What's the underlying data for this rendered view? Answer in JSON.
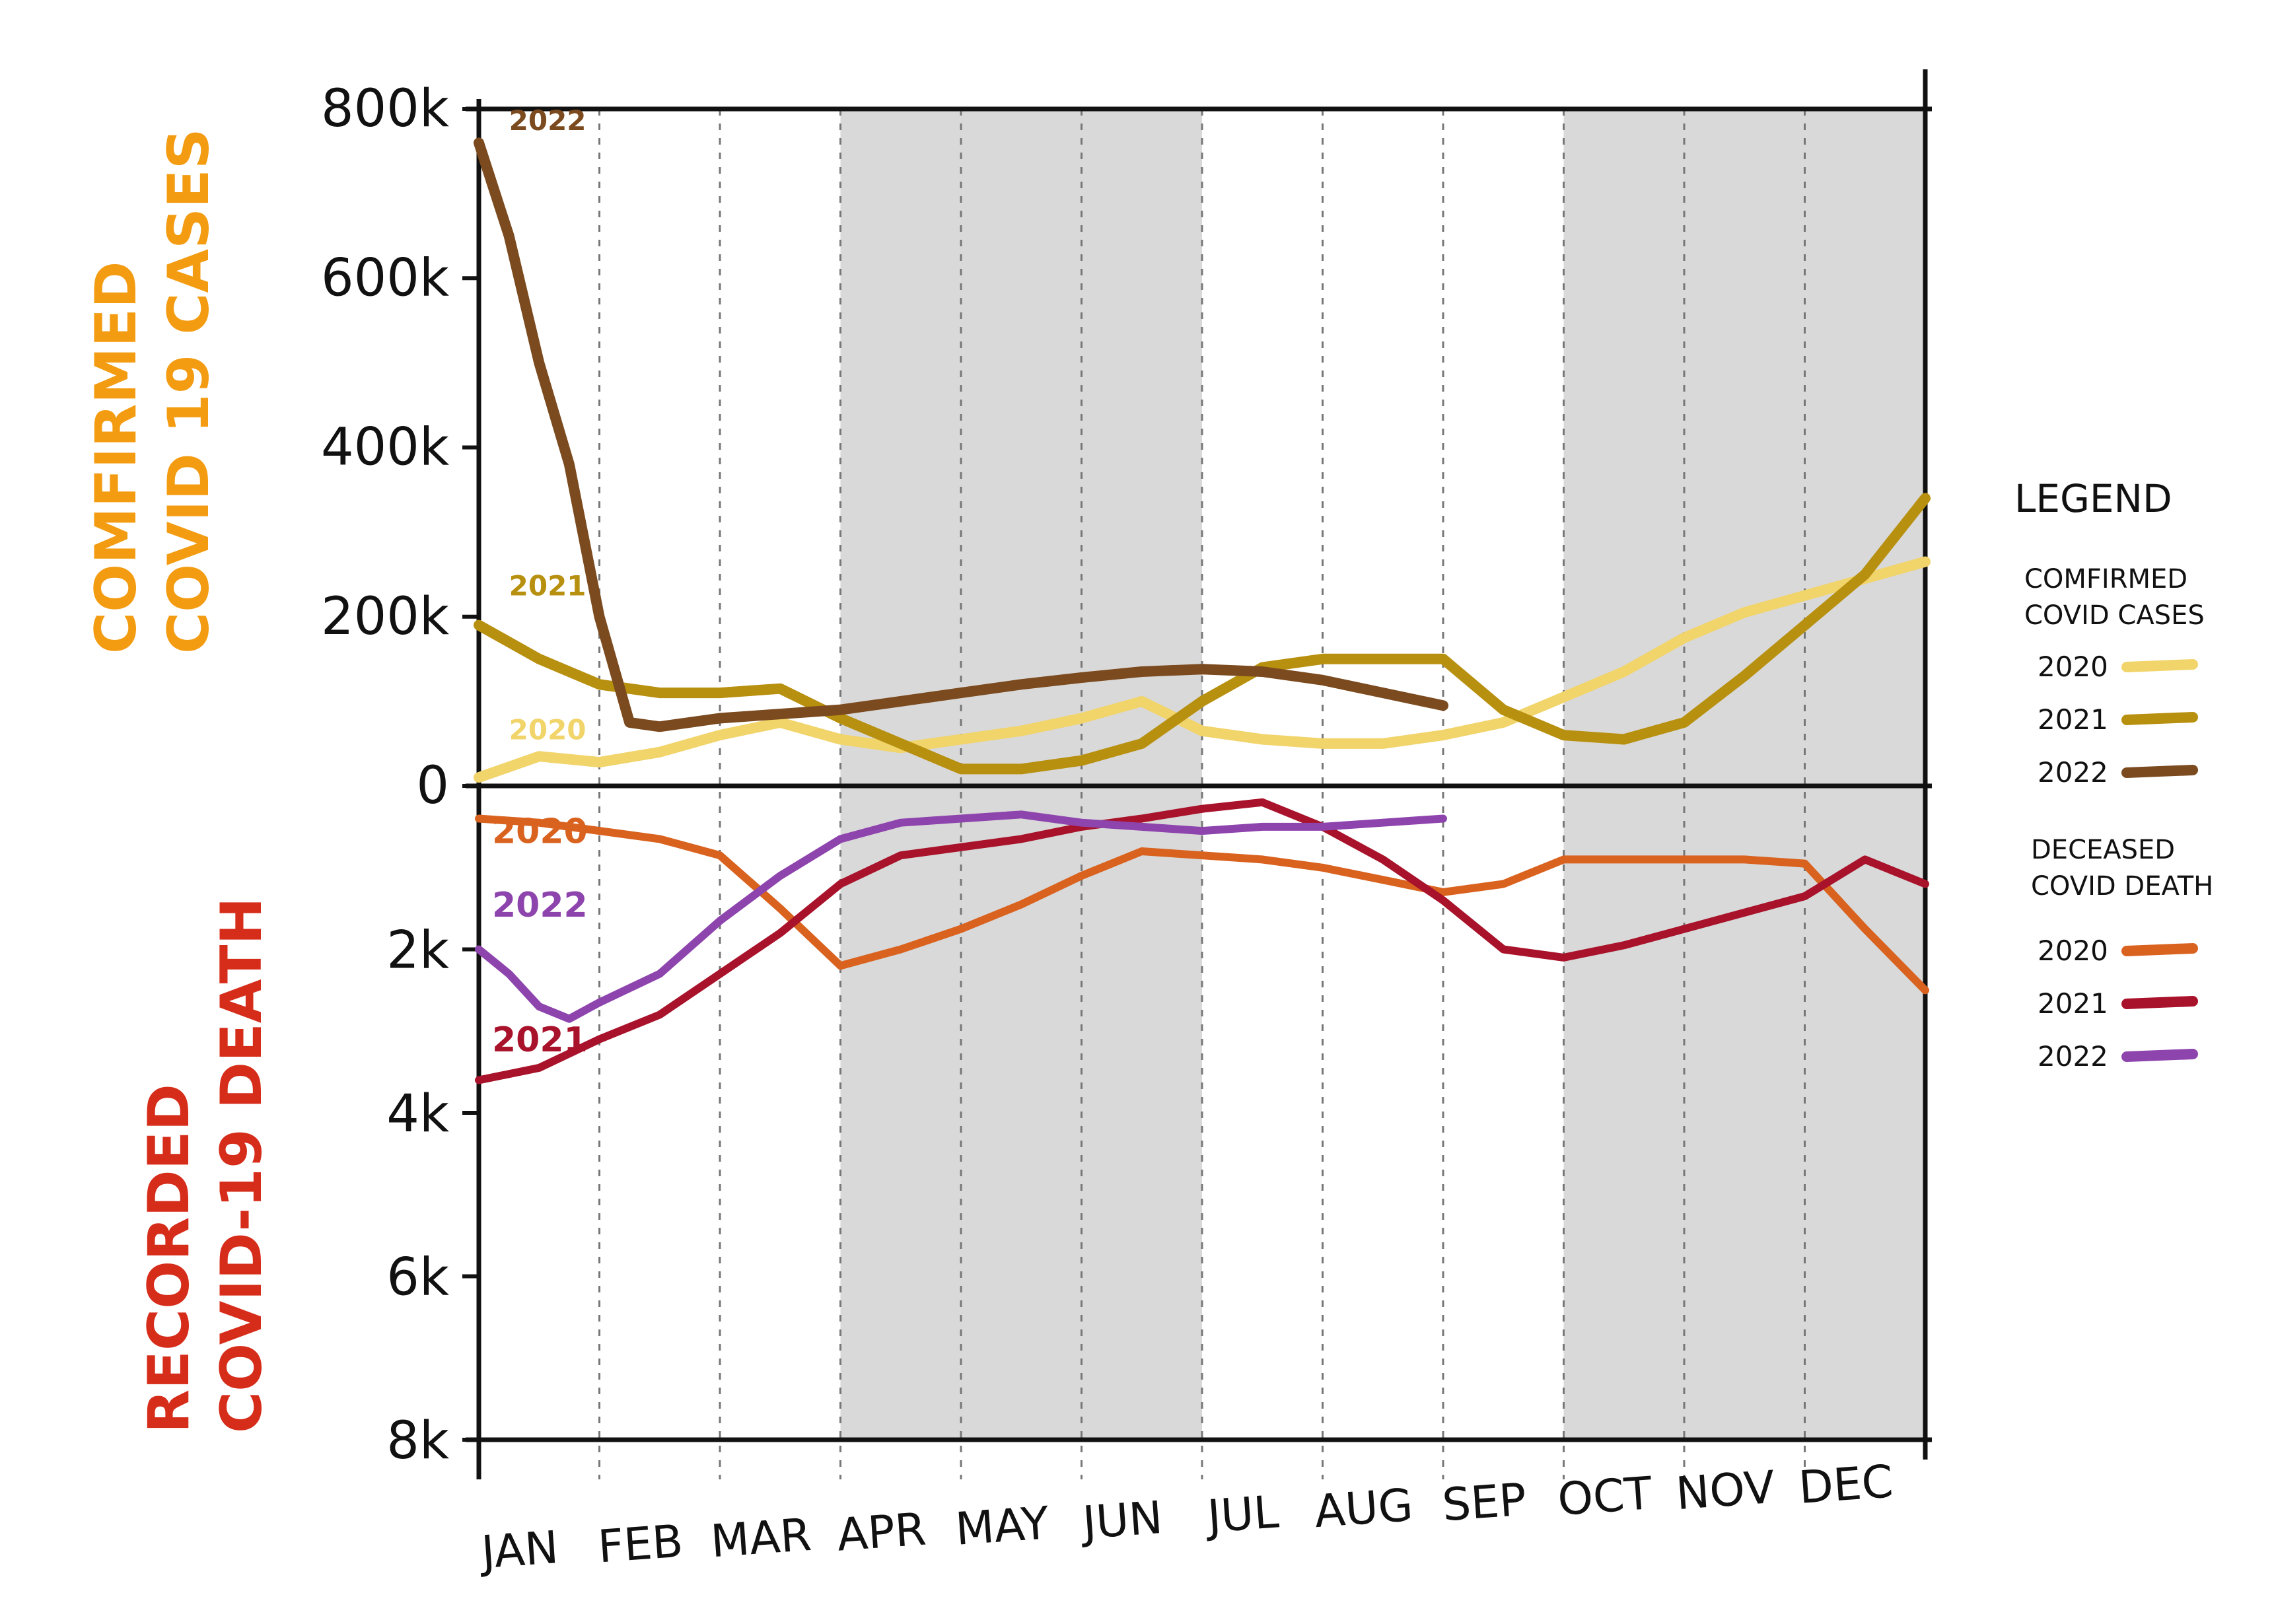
{
  "chart_data": {
    "type": "line",
    "x": [
      "JAN",
      "FEB",
      "MAR",
      "APR",
      "MAY",
      "JUN",
      "JUL",
      "AUG",
      "SEP",
      "OCT",
      "NOV",
      "DEC"
    ],
    "shaded_periods": [
      [
        "APR",
        "JUN"
      ],
      [
        "OCT",
        "DEC"
      ]
    ],
    "cases": {
      "ylabel_lines": [
        "COMFIRMED",
        "COVID 19 CASES"
      ],
      "ylim": [
        0,
        800000
      ],
      "yticks": [
        "800k",
        "600k",
        "400k",
        "200k",
        "0"
      ],
      "ytick_values": [
        800000,
        600000,
        400000,
        200000,
        0
      ],
      "series": [
        {
          "name": "2020",
          "color": "#f1d46a",
          "x": [
            0.0,
            0.5,
            1.0,
            1.5,
            2.0,
            2.5,
            3.0,
            3.5,
            4.0,
            4.5,
            5.0,
            5.5,
            6.0,
            6.5,
            7.0,
            7.5,
            8.0,
            8.5,
            9.0,
            9.5,
            10.0,
            10.5,
            11.0,
            11.5,
            12.0
          ],
          "y": [
            10000,
            35000,
            28000,
            40000,
            60000,
            75000,
            55000,
            45000,
            55000,
            65000,
            80000,
            100000,
            65000,
            55000,
            50000,
            50000,
            60000,
            75000,
            105000,
            135000,
            175000,
            205000,
            225000,
            245000,
            265000
          ]
        },
        {
          "name": "2021",
          "color": "#b8900f",
          "x": [
            0.0,
            0.5,
            1.0,
            1.5,
            2.0,
            2.5,
            3.0,
            3.5,
            4.0,
            4.5,
            5.0,
            5.5,
            6.0,
            6.5,
            7.0,
            7.5,
            8.0,
            8.5,
            9.0,
            9.5,
            10.0,
            10.5,
            11.0,
            11.5,
            12.0
          ],
          "y": [
            190000,
            150000,
            120000,
            110000,
            110000,
            115000,
            80000,
            50000,
            20000,
            20000,
            30000,
            50000,
            100000,
            140000,
            150000,
            150000,
            150000,
            90000,
            60000,
            55000,
            75000,
            130000,
            190000,
            250000,
            340000
          ]
        },
        {
          "name": "2022",
          "color": "#7b4a1f",
          "x": [
            0.0,
            0.25,
            0.5,
            0.75,
            1.0,
            1.25,
            1.5,
            2.0,
            2.5,
            3.0,
            3.5,
            4.0,
            4.5,
            5.0,
            5.5,
            6.0,
            6.5,
            7.0,
            7.5,
            8.0
          ],
          "y": [
            760000,
            650000,
            500000,
            380000,
            200000,
            75000,
            70000,
            80000,
            85000,
            90000,
            100000,
            110000,
            120000,
            128000,
            135000,
            138000,
            135000,
            125000,
            110000,
            95000
          ]
        }
      ],
      "annotations": [
        {
          "text": "2022",
          "series": "2022",
          "x": 0.25,
          "y": 775000
        },
        {
          "text": "2021",
          "series": "2021",
          "x": 0.25,
          "y": 225000
        },
        {
          "text": "2020",
          "series": "2020",
          "x": 0.25,
          "y": 55000
        }
      ]
    },
    "deaths": {
      "ylabel_lines": [
        "RECORDED",
        "COVID-19 DEATH"
      ],
      "ylim": [
        0,
        8000
      ],
      "inverted": true,
      "yticks": [
        "2k",
        "4k",
        "6k",
        "8k"
      ],
      "ytick_values": [
        2000,
        4000,
        6000,
        8000
      ],
      "series": [
        {
          "name": "2020",
          "color": "#d9621f",
          "x": [
            0.0,
            0.5,
            1.0,
            1.5,
            2.0,
            2.5,
            3.0,
            3.5,
            4.0,
            4.5,
            5.0,
            5.5,
            6.0,
            6.5,
            7.0,
            7.5,
            8.0,
            8.5,
            9.0,
            9.5,
            10.0,
            10.5,
            11.0,
            11.5,
            12.0
          ],
          "y": [
            400,
            450,
            550,
            650,
            850,
            1500,
            2200,
            2000,
            1750,
            1450,
            1100,
            800,
            850,
            900,
            1000,
            1150,
            1300,
            1200,
            900,
            900,
            900,
            900,
            950,
            1750,
            2500
          ]
        },
        {
          "name": "2021",
          "color": "#a8122a",
          "x": [
            0.0,
            0.5,
            1.0,
            1.5,
            2.0,
            2.5,
            3.0,
            3.5,
            4.0,
            4.5,
            5.0,
            5.5,
            6.0,
            6.5,
            7.0,
            7.5,
            8.0,
            8.5,
            9.0,
            9.5,
            10.0,
            10.5,
            11.0,
            11.5,
            12.0
          ],
          "y": [
            3600,
            3450,
            3100,
            2800,
            2300,
            1800,
            1200,
            850,
            750,
            650,
            500,
            400,
            280,
            200,
            500,
            900,
            1400,
            2000,
            2100,
            1950,
            1750,
            1550,
            1350,
            900,
            1200
          ]
        },
        {
          "name": "2022",
          "color": "#8e44ad",
          "x": [
            0.0,
            0.25,
            0.5,
            0.75,
            1.0,
            1.5,
            2.0,
            2.5,
            3.0,
            3.5,
            4.0,
            4.5,
            5.0,
            5.5,
            6.0,
            6.5,
            7.0,
            7.5,
            8.0
          ],
          "y": [
            2000,
            2300,
            2700,
            2850,
            2650,
            2300,
            1650,
            1100,
            650,
            450,
            400,
            350,
            450,
            500,
            550,
            500,
            500,
            450,
            400
          ]
        }
      ],
      "annotations": [
        {
          "text": "2020",
          "series": "2020",
          "x": 0.25,
          "y": 700
        },
        {
          "text": "2022",
          "series": "2022",
          "x": 0.25,
          "y": 1600
        },
        {
          "text": "2021",
          "series": "2021",
          "x": 0.25,
          "y": 3250
        }
      ]
    },
    "legend": {
      "title": "LEGEND",
      "placement": "right",
      "groups": [
        {
          "heading_lines": [
            "COMFIRMED",
            "COVID CASES"
          ],
          "items": [
            {
              "label": "2020",
              "color": "#f1d46a"
            },
            {
              "label": "2021",
              "color": "#b8900f"
            },
            {
              "label": "2022",
              "color": "#7b4a1f"
            }
          ]
        },
        {
          "heading_lines": [
            "DECEASED",
            "COVID DEATH"
          ],
          "items": [
            {
              "label": "2020",
              "color": "#d9621f"
            },
            {
              "label": "2021",
              "color": "#a8122a"
            },
            {
              "label": "2022",
              "color": "#8e44ad"
            }
          ]
        }
      ]
    },
    "colors": {
      "cases_label": "#f39c12",
      "deaths_label": "#d62c1a",
      "shade": "#d9d9d9",
      "axis": "#111111"
    }
  }
}
